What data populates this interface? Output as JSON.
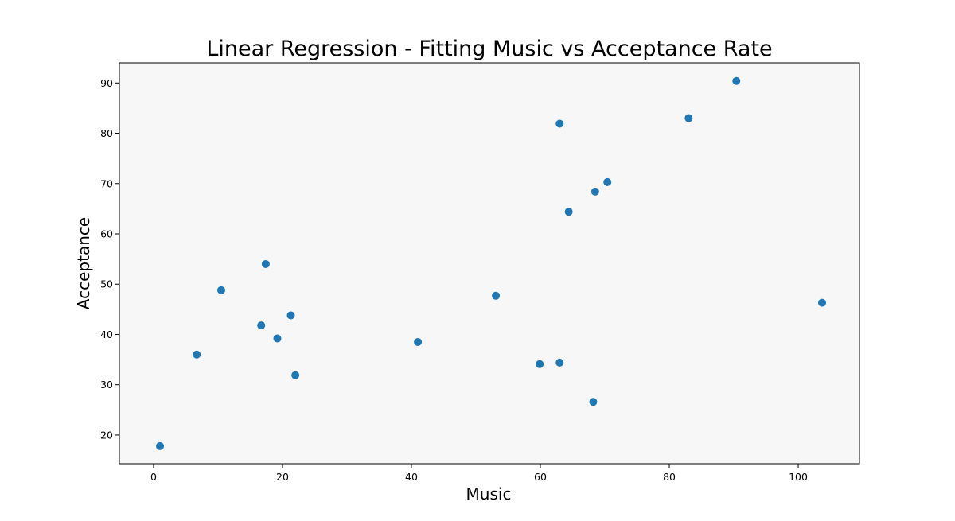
{
  "chart_data": {
    "type": "scatter",
    "title": "Linear Regression - Fitting Music vs Acceptance Rate",
    "xlabel": "Music",
    "ylabel": "Acceptance",
    "xlim": [
      -5.3,
      109.5
    ],
    "ylim": [
      14.3,
      94.0
    ],
    "xticks": [
      0,
      20,
      40,
      60,
      80,
      100
    ],
    "yticks": [
      20,
      30,
      40,
      50,
      60,
      70,
      80,
      90
    ],
    "grid": false,
    "legend": "none",
    "series": [
      {
        "points": [
          {
            "x": 1.0,
            "y": 17.8
          },
          {
            "x": 6.7,
            "y": 36.0
          },
          {
            "x": 10.5,
            "y": 48.8
          },
          {
            "x": 16.7,
            "y": 41.8
          },
          {
            "x": 17.4,
            "y": 54.0
          },
          {
            "x": 19.2,
            "y": 39.2
          },
          {
            "x": 21.3,
            "y": 43.8
          },
          {
            "x": 22.0,
            "y": 31.9
          },
          {
            "x": 41.0,
            "y": 38.5
          },
          {
            "x": 53.1,
            "y": 47.7
          },
          {
            "x": 59.9,
            "y": 34.1
          },
          {
            "x": 63.0,
            "y": 34.4
          },
          {
            "x": 63.0,
            "y": 81.9
          },
          {
            "x": 64.4,
            "y": 64.4
          },
          {
            "x": 68.2,
            "y": 26.6
          },
          {
            "x": 68.5,
            "y": 68.4
          },
          {
            "x": 70.4,
            "y": 70.3
          },
          {
            "x": 83.0,
            "y": 83.0
          },
          {
            "x": 90.4,
            "y": 90.4
          },
          {
            "x": 103.7,
            "y": 46.3
          }
        ]
      }
    ]
  },
  "colors": {
    "marker": "#1f77b4",
    "plot_background": "#f7f7f7",
    "axes": "#000000"
  }
}
